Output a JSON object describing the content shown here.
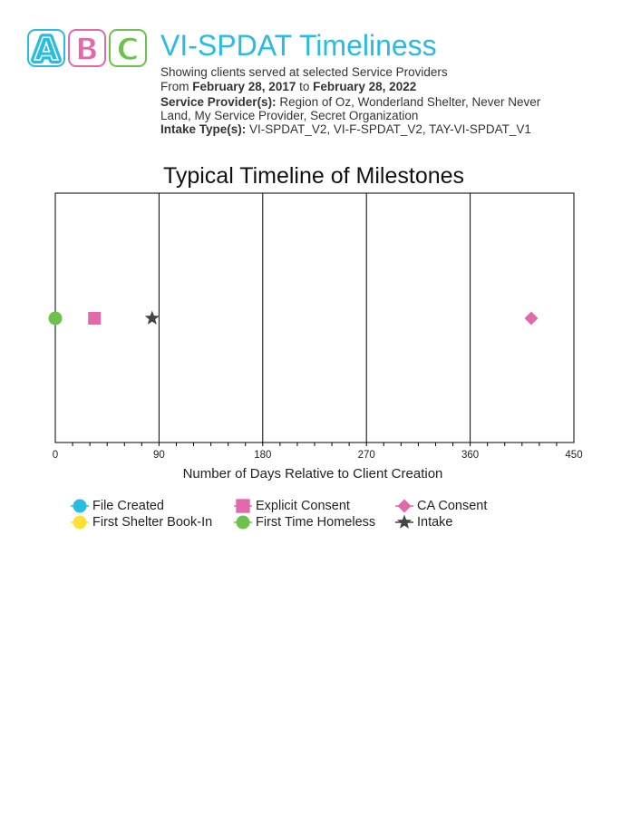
{
  "header": {
    "logo_letters": [
      "A",
      "B",
      "C"
    ],
    "logo_colors": [
      "#27bce0",
      "#e06aaa",
      "#6cc24a"
    ],
    "title": "VI-SPDAT Timeliness",
    "subtitle": "Showing clients served at selected Service Providers",
    "date_from_prefix": "From",
    "date_from": "February 28, 2017",
    "date_to_prefix": "to",
    "date_to": "February 28, 2022",
    "providers_label": "Service Provider(s):",
    "providers_line1": "Region of Oz, Wonderland Shelter, Never Never",
    "providers_line2": "Land, My Service Provider, Secret Organization",
    "intake_label": "Intake Type(s):",
    "intake_value": "VI-SPDAT_V2, VI-F-SPDAT_V2, TAY-VI-SPDAT_V1"
  },
  "chart_data": {
    "type": "scatter",
    "title": "Typical Timeline of Milestones",
    "xlabel": "Number of Days Relative to Client Creation",
    "ylabel": "",
    "xlim": [
      0,
      450
    ],
    "x_ticks": [
      0,
      90,
      180,
      270,
      360,
      450
    ],
    "grid": "vertical",
    "series": [
      {
        "name": "File Created",
        "color": "#27bce0",
        "marker": "circle",
        "x": null
      },
      {
        "name": "Explicit Consent",
        "color": "#e06aaa",
        "marker": "square",
        "x": 34
      },
      {
        "name": "CA Consent",
        "color": "#e06aaa",
        "marker": "diamond",
        "x": 413
      },
      {
        "name": "First Shelter Book-In",
        "color": "#ffe033",
        "marker": "circle",
        "x": null
      },
      {
        "name": "First Time Homeless",
        "color": "#6cc24a",
        "marker": "circle",
        "x": 0
      },
      {
        "name": "Intake",
        "color": "#444444",
        "marker": "star",
        "x": 84
      }
    ],
    "legend_position": "bottom"
  }
}
